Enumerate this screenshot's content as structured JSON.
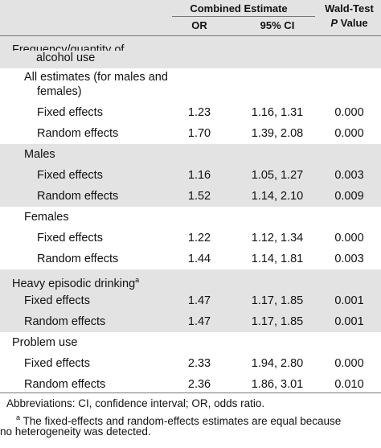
{
  "header": {
    "combined_estimate": "Combined Estimate",
    "col_or": "OR",
    "col_ci": "95% CI",
    "wald_line1": "Wald-Test",
    "wald_p": "P",
    "wald_line2_rest": " Value"
  },
  "rows": [
    {
      "label": "Frequency/quantity of",
      "or": "",
      "ci": "",
      "p": ""
    },
    {
      "label": "alcohol use",
      "or": "",
      "ci": "",
      "p": ""
    },
    {
      "label": "All estimates (for males and",
      "or": "",
      "ci": "",
      "p": ""
    },
    {
      "label": "females)",
      "or": "",
      "ci": "",
      "p": ""
    },
    {
      "label": "Fixed effects",
      "or": "1.23",
      "ci": "1.16, 1.31",
      "p": "0.000"
    },
    {
      "label": "Random effects",
      "or": "1.70",
      "ci": "1.39, 2.08",
      "p": "0.000"
    },
    {
      "label": "Males",
      "or": "",
      "ci": "",
      "p": ""
    },
    {
      "label": "Fixed effects",
      "or": "1.16",
      "ci": "1.05, 1.27",
      "p": "0.003"
    },
    {
      "label": "Random effects",
      "or": "1.52",
      "ci": "1.14, 2.10",
      "p": "0.009"
    },
    {
      "label": "Females",
      "or": "",
      "ci": "",
      "p": ""
    },
    {
      "label": "Fixed effects",
      "or": "1.22",
      "ci": "1.12, 1.34",
      "p": "0.000"
    },
    {
      "label": "Random effects",
      "or": "1.44",
      "ci": "1.14, 1.81",
      "p": "0.003"
    },
    {
      "label": "Heavy episodic drinking",
      "sup": "a",
      "or": "",
      "ci": "",
      "p": ""
    },
    {
      "label": "Fixed effects",
      "or": "1.47",
      "ci": "1.17, 1.85",
      "p": "0.001"
    },
    {
      "label": "Random effects",
      "or": "1.47",
      "ci": "1.17, 1.85",
      "p": "0.001"
    },
    {
      "label": "Problem use",
      "or": "",
      "ci": "",
      "p": ""
    },
    {
      "label": "Fixed effects",
      "or": "2.33",
      "ci": "1.94, 2.80",
      "p": "0.000"
    },
    {
      "label": "Random effects",
      "or": "2.36",
      "ci": "1.86, 3.01",
      "p": "0.010"
    }
  ],
  "footnotes": {
    "abbreviations": "Abbreviations: CI, confidence interval; OR, odds ratio.",
    "note_marker": "a",
    "note_line1": " The fixed-effects and random-effects estimates are equal because",
    "note_line2": "no heterogeneity was detected."
  }
}
